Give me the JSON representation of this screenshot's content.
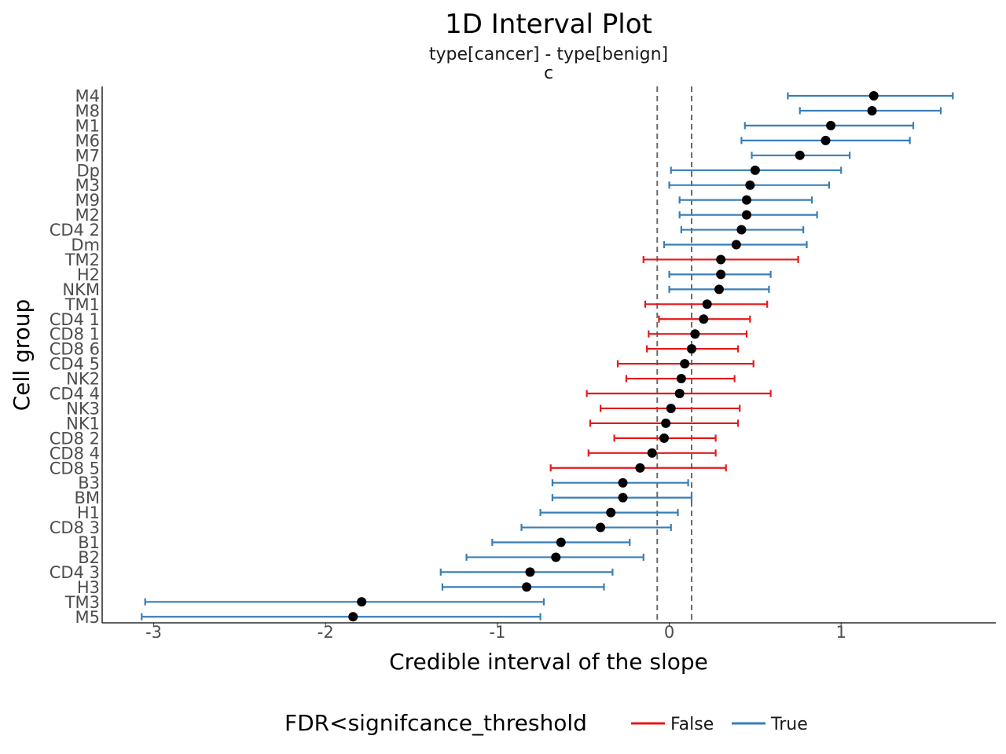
{
  "chart_data": {
    "type": "interval",
    "title": "1D Interval Plot",
    "subtitle": "type[cancer] - type[benign]",
    "panel_label": "c",
    "xlabel": "Credible interval of the slope",
    "ylabel": "Cell group",
    "xlim": [
      -3.3,
      1.9
    ],
    "x_ticks": [
      -3,
      -2,
      -1,
      0,
      1
    ],
    "x_tick_labels": [
      "-3",
      "-2",
      "-1",
      "0",
      "1"
    ],
    "reference_lines": [
      -0.07,
      0.13
    ],
    "grid": false,
    "legend": {
      "title": "FDR<signifcance_threshold",
      "position": "bottom",
      "entries": [
        {
          "label": "False",
          "color": "#e41a1c"
        },
        {
          "label": "True",
          "color": "#377eb8"
        }
      ]
    },
    "points": [
      {
        "group": "M4",
        "estimate": 1.19,
        "lower": 0.69,
        "upper": 1.65,
        "significant": true
      },
      {
        "group": "M8",
        "estimate": 1.18,
        "lower": 0.76,
        "upper": 1.58,
        "significant": true
      },
      {
        "group": "M1",
        "estimate": 0.94,
        "lower": 0.44,
        "upper": 1.42,
        "significant": true
      },
      {
        "group": "M6",
        "estimate": 0.91,
        "lower": 0.42,
        "upper": 1.4,
        "significant": true
      },
      {
        "group": "M7",
        "estimate": 0.76,
        "lower": 0.48,
        "upper": 1.05,
        "significant": true
      },
      {
        "group": "Dp",
        "estimate": 0.5,
        "lower": 0.01,
        "upper": 1.0,
        "significant": true
      },
      {
        "group": "M3",
        "estimate": 0.47,
        "lower": 0.0,
        "upper": 0.93,
        "significant": true
      },
      {
        "group": "M9",
        "estimate": 0.45,
        "lower": 0.06,
        "upper": 0.83,
        "significant": true
      },
      {
        "group": "M2",
        "estimate": 0.45,
        "lower": 0.06,
        "upper": 0.86,
        "significant": true
      },
      {
        "group": "CD4 2",
        "estimate": 0.42,
        "lower": 0.07,
        "upper": 0.78,
        "significant": true
      },
      {
        "group": "Dm",
        "estimate": 0.39,
        "lower": -0.03,
        "upper": 0.8,
        "significant": true
      },
      {
        "group": "TM2",
        "estimate": 0.3,
        "lower": -0.15,
        "upper": 0.75,
        "significant": false
      },
      {
        "group": "H2",
        "estimate": 0.3,
        "lower": 0.0,
        "upper": 0.59,
        "significant": true
      },
      {
        "group": "NKM",
        "estimate": 0.29,
        "lower": 0.0,
        "upper": 0.58,
        "significant": true
      },
      {
        "group": "TM1",
        "estimate": 0.22,
        "lower": -0.14,
        "upper": 0.57,
        "significant": false
      },
      {
        "group": "CD4 1",
        "estimate": 0.2,
        "lower": -0.06,
        "upper": 0.47,
        "significant": false
      },
      {
        "group": "CD8 1",
        "estimate": 0.15,
        "lower": -0.12,
        "upper": 0.45,
        "significant": false
      },
      {
        "group": "CD8 6",
        "estimate": 0.13,
        "lower": -0.13,
        "upper": 0.4,
        "significant": false
      },
      {
        "group": "CD4 5",
        "estimate": 0.09,
        "lower": -0.3,
        "upper": 0.49,
        "significant": false
      },
      {
        "group": "NK2",
        "estimate": 0.07,
        "lower": -0.25,
        "upper": 0.38,
        "significant": false
      },
      {
        "group": "CD4 4",
        "estimate": 0.06,
        "lower": -0.48,
        "upper": 0.59,
        "significant": false
      },
      {
        "group": "NK3",
        "estimate": 0.01,
        "lower": -0.4,
        "upper": 0.41,
        "significant": false
      },
      {
        "group": "NK1",
        "estimate": -0.02,
        "lower": -0.46,
        "upper": 0.4,
        "significant": false
      },
      {
        "group": "CD8 2",
        "estimate": -0.03,
        "lower": -0.32,
        "upper": 0.27,
        "significant": false
      },
      {
        "group": "CD8 4",
        "estimate": -0.1,
        "lower": -0.47,
        "upper": 0.27,
        "significant": false
      },
      {
        "group": "CD8 5",
        "estimate": -0.17,
        "lower": -0.69,
        "upper": 0.33,
        "significant": false
      },
      {
        "group": "B3",
        "estimate": -0.27,
        "lower": -0.68,
        "upper": 0.11,
        "significant": true
      },
      {
        "group": "BM",
        "estimate": -0.27,
        "lower": -0.68,
        "upper": 0.13,
        "significant": true
      },
      {
        "group": "H1",
        "estimate": -0.34,
        "lower": -0.75,
        "upper": 0.05,
        "significant": true
      },
      {
        "group": "CD8 3",
        "estimate": -0.4,
        "lower": -0.86,
        "upper": 0.01,
        "significant": true
      },
      {
        "group": "B1",
        "estimate": -0.63,
        "lower": -1.03,
        "upper": -0.23,
        "significant": true
      },
      {
        "group": "B2",
        "estimate": -0.66,
        "lower": -1.18,
        "upper": -0.15,
        "significant": true
      },
      {
        "group": "CD4 3",
        "estimate": -0.81,
        "lower": -1.33,
        "upper": -0.33,
        "significant": true
      },
      {
        "group": "H3",
        "estimate": -0.83,
        "lower": -1.32,
        "upper": -0.38,
        "significant": true
      },
      {
        "group": "TM3",
        "estimate": -1.79,
        "lower": -3.05,
        "upper": -0.73,
        "significant": true
      },
      {
        "group": "M5",
        "estimate": -1.84,
        "lower": -3.07,
        "upper": -0.75,
        "significant": true
      }
    ]
  }
}
